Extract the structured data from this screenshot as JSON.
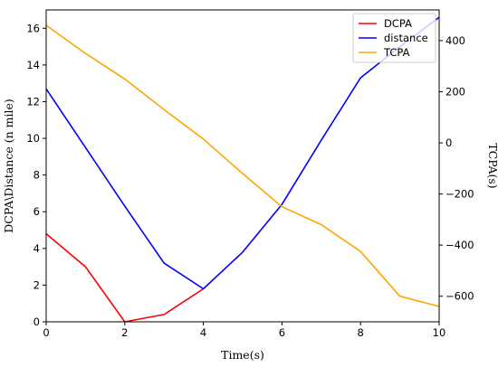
{
  "chart_data": {
    "type": "line",
    "xlabel": "Time(s)",
    "ylabel_left": "DCPA\\Distance (n mile)",
    "ylabel_right": "TCPA(s)",
    "xlim": [
      0,
      10
    ],
    "ylim_left": [
      0,
      17
    ],
    "ylim_right": [
      -700,
      520
    ],
    "x_ticks": [
      0,
      2,
      4,
      6,
      8,
      10
    ],
    "y_ticks_left": [
      0,
      2,
      4,
      6,
      8,
      10,
      12,
      14,
      16
    ],
    "y_ticks_right": [
      -600,
      -400,
      -200,
      0,
      200,
      400
    ],
    "grid": false,
    "legend_position": "upper right",
    "series": [
      {
        "name": "DCPA",
        "axis": "left",
        "color": "#ff0000",
        "x": [
          0,
          1,
          2,
          3,
          4
        ],
        "y": [
          4.8,
          3.0,
          0.0,
          0.4,
          1.8
        ]
      },
      {
        "name": "distance",
        "axis": "left",
        "color": "#0000ff",
        "x": [
          0,
          1,
          2,
          3,
          4,
          5,
          6,
          7,
          8,
          9,
          10
        ],
        "y": [
          12.7,
          9.5,
          6.3,
          3.2,
          1.8,
          3.8,
          6.4,
          9.9,
          13.3,
          15.0,
          16.6
        ]
      },
      {
        "name": "TCPA",
        "axis": "right",
        "color": "#ffa500",
        "x": [
          0,
          1,
          2,
          3,
          4,
          5,
          6,
          7,
          8,
          9,
          10
        ],
        "y": [
          460,
          350,
          250,
          130,
          15,
          -120,
          -250,
          -320,
          -425,
          -600,
          -640
        ]
      }
    ]
  }
}
